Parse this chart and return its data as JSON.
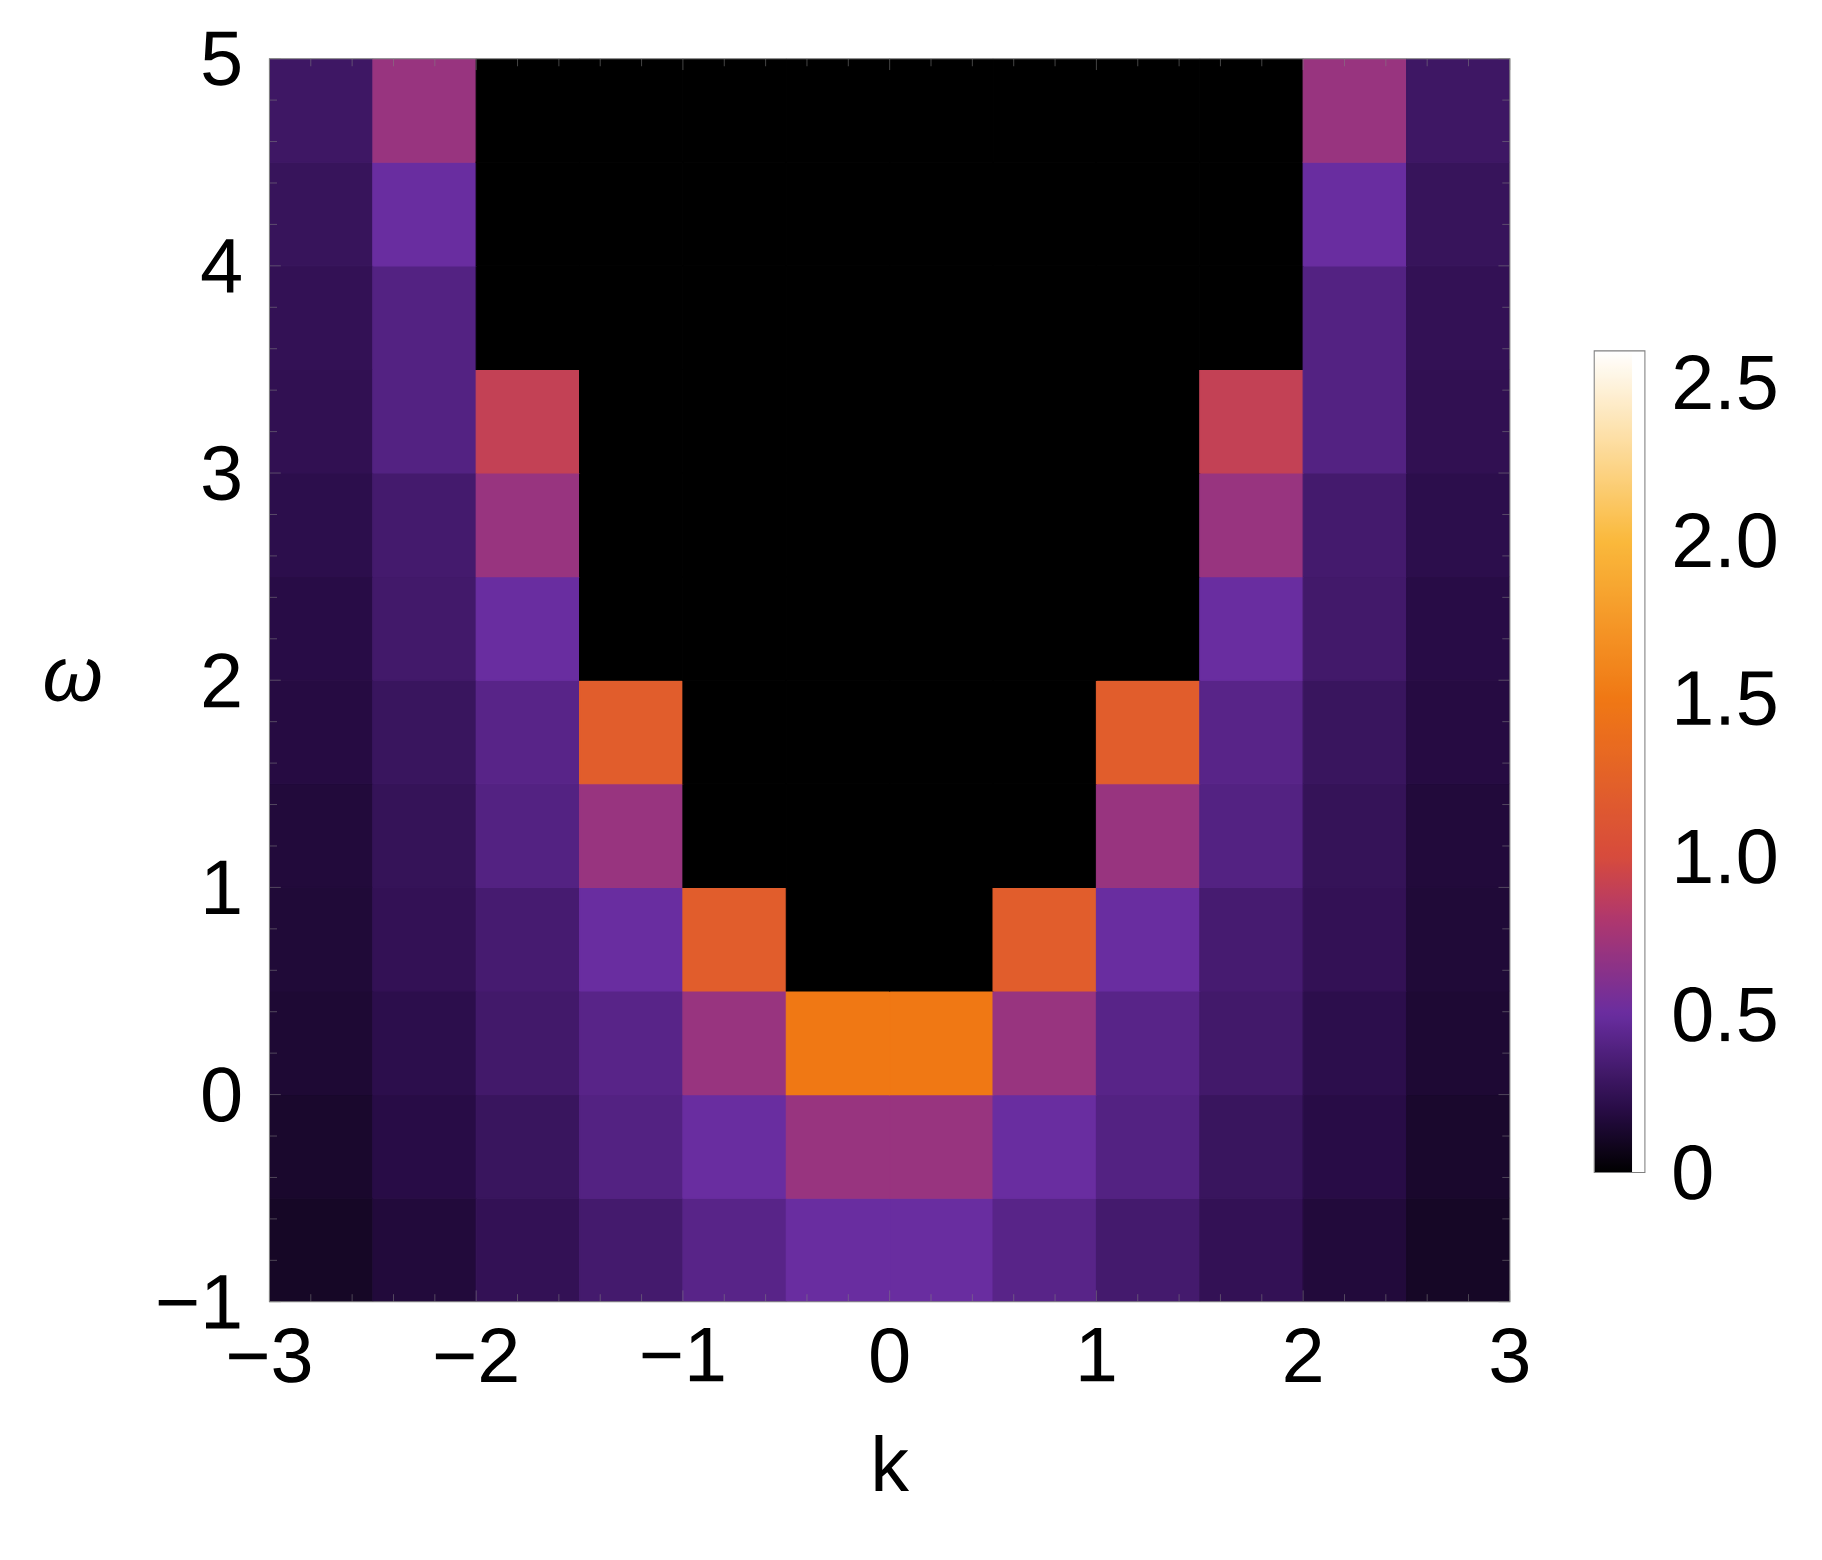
{
  "chart_data": {
    "type": "heatmap",
    "xlabel": "k",
    "ylabel": "ω",
    "x": [
      -2.75,
      -2.25,
      -1.75,
      -1.25,
      -0.75,
      -0.25,
      0.25,
      0.75,
      1.25,
      1.75,
      2.25,
      2.75
    ],
    "y": [
      4.75,
      4.25,
      3.75,
      3.25,
      2.75,
      2.25,
      1.75,
      1.25,
      0.75,
      0.25,
      -0.25,
      -0.75
    ],
    "xlim": [
      -3,
      3
    ],
    "ylim": [
      -1,
      5
    ],
    "xticks": [
      {
        "value": -3,
        "label": "−3"
      },
      {
        "value": -2,
        "label": "−2"
      },
      {
        "value": -1,
        "label": "−1"
      },
      0,
      1,
      2,
      3
    ],
    "yticks": [
      {
        "value": -1,
        "label": "−1"
      },
      0,
      1,
      2,
      3,
      4,
      5
    ],
    "clim": [
      0,
      2.6
    ],
    "cticks": [
      0,
      0.5,
      {
        "value": 1,
        "label": "1.0"
      },
      1.5,
      {
        "value": 2,
        "label": "2.0"
      },
      2.5
    ],
    "cells": [
      [
        0.3,
        0.7,
        0,
        0,
        0,
        0,
        0,
        0,
        0,
        0,
        0.7,
        0.3
      ],
      [
        0.27,
        0.5,
        0,
        0,
        0,
        0,
        0,
        0,
        0,
        0,
        0.5,
        0.27
      ],
      [
        0.25,
        0.4,
        0,
        0,
        0,
        0,
        0,
        0,
        0,
        0,
        0.4,
        0.25
      ],
      [
        0.24,
        0.4,
        0.9,
        0,
        0,
        0,
        0,
        0,
        0,
        0.9,
        0.4,
        0.24
      ],
      [
        0.22,
        0.33,
        0.7,
        0,
        0,
        0,
        0,
        0,
        0,
        0.7,
        0.33,
        0.22
      ],
      [
        0.2,
        0.32,
        0.5,
        0,
        0,
        0,
        0,
        0,
        0,
        0.5,
        0.32,
        0.2
      ],
      [
        0.19,
        0.28,
        0.42,
        1.2,
        0,
        0,
        0,
        0,
        1.2,
        0.42,
        0.28,
        0.19
      ],
      [
        0.17,
        0.26,
        0.4,
        0.7,
        0,
        0,
        0,
        0,
        0.7,
        0.4,
        0.26,
        0.17
      ],
      [
        0.16,
        0.25,
        0.34,
        0.5,
        1.2,
        0,
        0,
        1.2,
        0.5,
        0.34,
        0.25,
        0.16
      ],
      [
        0.15,
        0.22,
        0.32,
        0.42,
        0.7,
        1.5,
        1.5,
        0.7,
        0.42,
        0.32,
        0.22,
        0.15
      ],
      [
        0.13,
        0.2,
        0.28,
        0.4,
        0.5,
        0.7,
        0.7,
        0.5,
        0.4,
        0.28,
        0.2,
        0.13
      ],
      [
        0.11,
        0.17,
        0.25,
        0.33,
        0.42,
        0.5,
        0.5,
        0.42,
        0.33,
        0.25,
        0.17,
        0.11
      ]
    ]
  }
}
